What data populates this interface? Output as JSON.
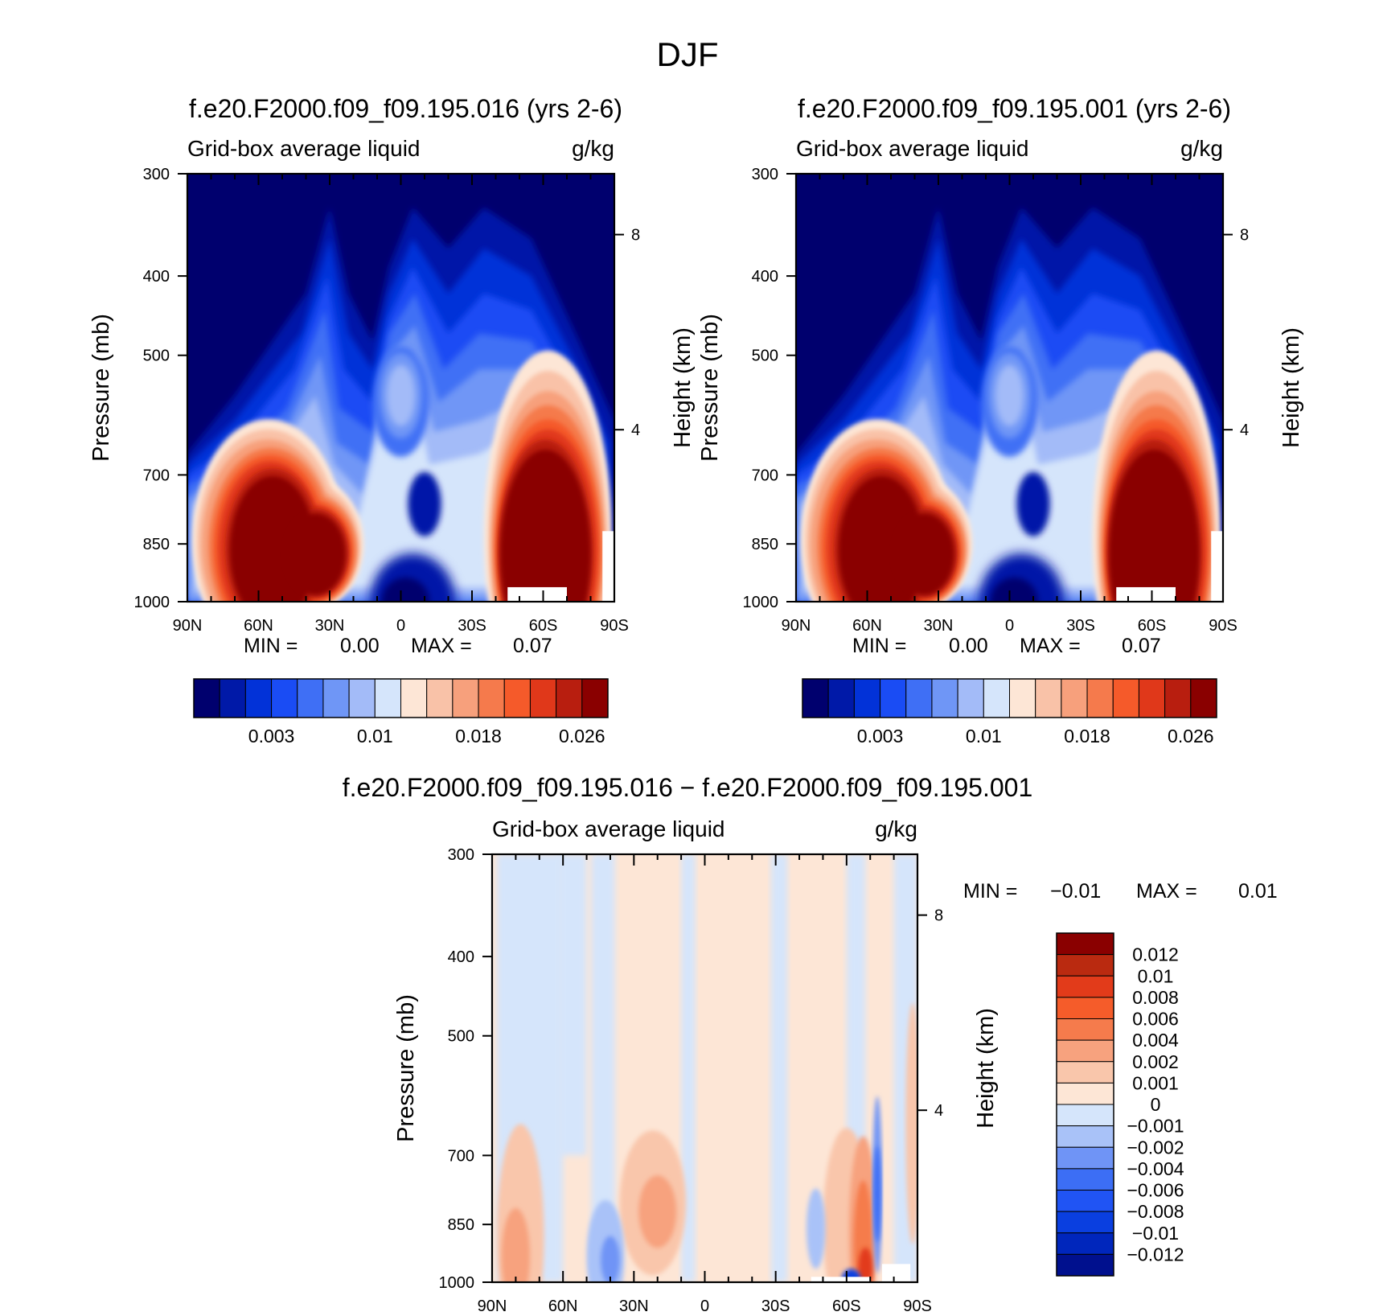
{
  "page": {
    "title": "DJF"
  },
  "colors": {
    "abs_palette": [
      "#00006e",
      "#0019a8",
      "#0232d8",
      "#1a4cf4",
      "#3f6ff5",
      "#6f96f6",
      "#a3bbf8",
      "#d5e5fb",
      "#fde6d6",
      "#f9c2a8",
      "#f7a07c",
      "#f57a4c",
      "#f55a2a",
      "#e0381a",
      "#b81e0f",
      "#8a0000"
    ],
    "diff_palette": [
      "#00108e",
      "#0026bc",
      "#0a3fe0",
      "#2054f4",
      "#3c6ef5",
      "#6f94f6",
      "#a9c2f8",
      "#d5e5fb",
      "#fde6d6",
      "#f9c6ab",
      "#f7a27e",
      "#f57b4c",
      "#f55c2a",
      "#e23b1a",
      "#ba2a10",
      "#8a0000"
    ]
  },
  "chart_data": [
    {
      "type": "heatmap",
      "title": "f.e20.F2000.f09_f09.195.016 (yrs 2-6)",
      "variable": "Grid-box average liquid",
      "units": "g/kg",
      "ylabel": "Pressure (mb)",
      "y2label": "Height (km)",
      "x_ticks": [
        "90N",
        "60N",
        "30N",
        "0",
        "30S",
        "60S",
        "90S"
      ],
      "y_ticks": [
        300,
        400,
        500,
        700,
        850,
        1000
      ],
      "y2_ticks": [
        8,
        4
      ],
      "ylim": [
        1000,
        300
      ],
      "min_label": "MIN =",
      "min_value": "0.00",
      "max_label": "MAX =",
      "max_value": "0.07",
      "colorbar_labels": [
        "0.003",
        "0.01",
        "0.018",
        "0.026"
      ],
      "maxima": [
        {
          "lat": 55,
          "p": 860,
          "level": "> 0.026"
        },
        {
          "lat": -60,
          "p": 870,
          "level": "> 0.026"
        }
      ]
    },
    {
      "type": "heatmap",
      "title": "f.e20.F2000.f09_f09.195.001 (yrs 2-6)",
      "variable": "Grid-box average liquid",
      "units": "g/kg",
      "ylabel": "Pressure (mb)",
      "y2label": "Height (km)",
      "x_ticks": [
        "90N",
        "60N",
        "30N",
        "0",
        "30S",
        "60S",
        "90S"
      ],
      "y_ticks": [
        300,
        400,
        500,
        700,
        850,
        1000
      ],
      "y2_ticks": [
        8,
        4
      ],
      "ylim": [
        1000,
        300
      ],
      "min_label": "MIN =",
      "min_value": "0.00",
      "max_label": "MAX =",
      "max_value": "0.07",
      "colorbar_labels": [
        "0.003",
        "0.01",
        "0.018",
        "0.026"
      ],
      "maxima": [
        {
          "lat": 55,
          "p": 860,
          "level": "> 0.026"
        },
        {
          "lat": -60,
          "p": 870,
          "level": "> 0.026"
        }
      ]
    },
    {
      "type": "heatmap",
      "title": "f.e20.F2000.f09_f09.195.016 − f.e20.F2000.f09_f09.195.001",
      "variable": "Grid-box average liquid",
      "units": "g/kg",
      "ylabel": "Pressure (mb)",
      "y2label": "Height (km)",
      "x_ticks": [
        "90N",
        "60N",
        "30N",
        "0",
        "30S",
        "60S",
        "90S"
      ],
      "y_ticks": [
        300,
        400,
        500,
        700,
        850,
        1000
      ],
      "y2_ticks": [
        8,
        4
      ],
      "ylim": [
        1000,
        300
      ],
      "min_label": "MIN =",
      "min_value": "−0.01",
      "max_label": "MAX =",
      "max_value": "0.01",
      "colorbar_labels": [
        "0.012",
        "0.01",
        "0.008",
        "0.006",
        "0.004",
        "0.002",
        "0.001",
        "0",
        "−0.001",
        "−0.002",
        "−0.004",
        "−0.006",
        "−0.008",
        "−0.01",
        "−0.012"
      ]
    }
  ]
}
